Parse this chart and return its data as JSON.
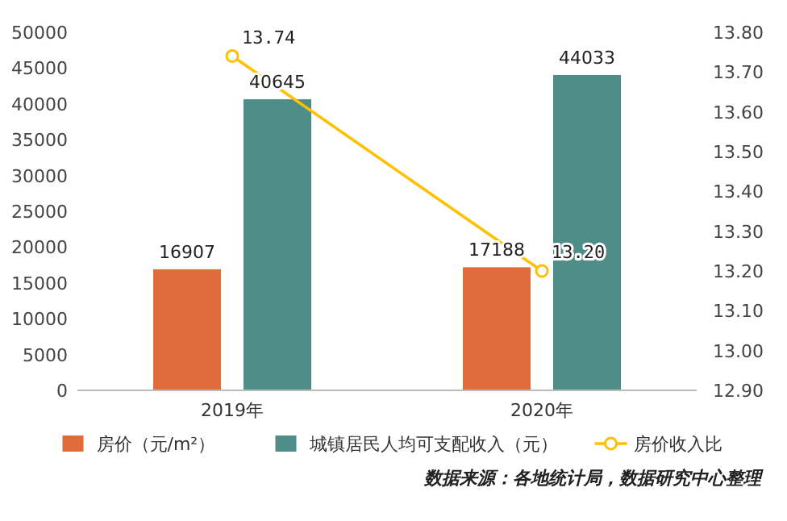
{
  "chart_data": {
    "type": "bar",
    "categories": [
      "2019年",
      "2020年"
    ],
    "series": [
      {
        "name": "房价（元/m²）",
        "color": "#e06b3b",
        "values": [
          16907,
          17188
        ]
      },
      {
        "name": "城镇居民人均可支配收入（元）",
        "color": "#4f8d89",
        "values": [
          40645,
          44033
        ]
      },
      {
        "name": "房价收入比",
        "type": "line",
        "axis": "y2",
        "color": "#ffc000",
        "marker": "circle",
        "values": [
          13.74,
          13.2
        ],
        "value_labels": [
          "13.74",
          "13.20"
        ]
      }
    ],
    "ylim": [
      0,
      50000
    ],
    "yticks": [
      0,
      5000,
      10000,
      15000,
      20000,
      25000,
      30000,
      35000,
      40000,
      45000,
      50000
    ],
    "y2lim": [
      12.9,
      13.8
    ],
    "y2ticks": [
      {
        "value": 12.9,
        "label": "12.90"
      },
      {
        "value": 13.0,
        "label": "13.00"
      },
      {
        "value": 13.1,
        "label": "13.10"
      },
      {
        "value": 13.2,
        "label": "13.20"
      },
      {
        "value": 13.3,
        "label": "13.30"
      },
      {
        "value": 13.4,
        "label": "13.40"
      },
      {
        "value": 13.5,
        "label": "13.50"
      },
      {
        "value": 13.6,
        "label": "13.60"
      },
      {
        "value": 13.7,
        "label": "13.70"
      },
      {
        "value": 13.8,
        "label": "13.80"
      }
    ],
    "data_labels": true,
    "grid": false,
    "legend": "bottom",
    "annotations": [
      "数据来源：各地统计局，数据研究中心整理"
    ]
  }
}
